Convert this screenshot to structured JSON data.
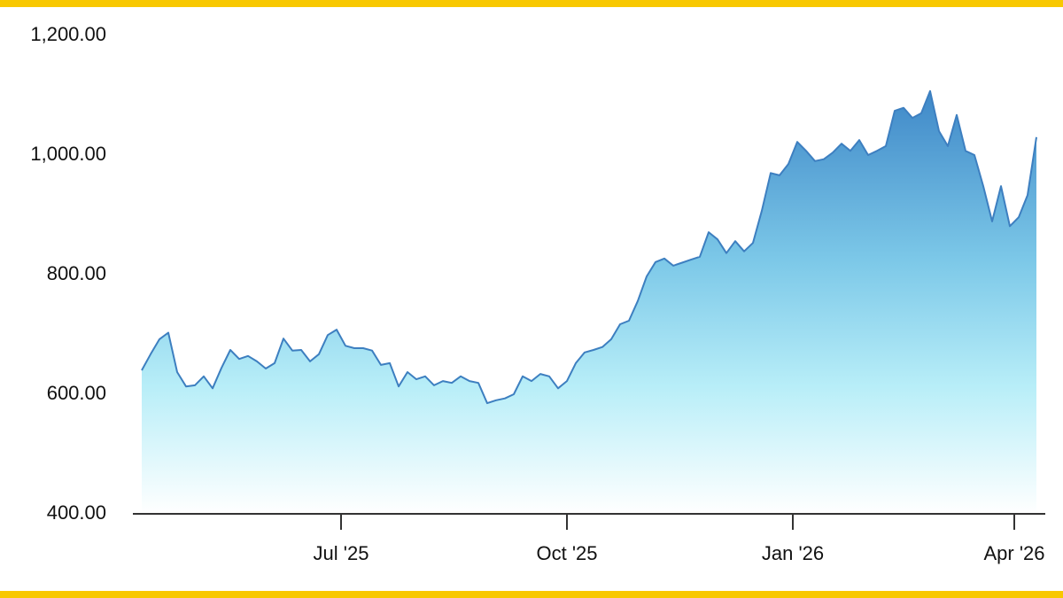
{
  "chart_data": {
    "type": "area",
    "values": [
      640,
      667,
      692,
      703,
      637,
      613,
      615,
      630,
      610,
      644,
      674,
      659,
      664,
      655,
      643,
      652,
      693,
      673,
      674,
      655,
      667,
      699,
      708,
      681,
      677,
      677,
      673,
      649,
      652,
      613,
      637,
      625,
      630,
      615,
      622,
      619,
      630,
      622,
      619,
      585,
      590,
      593,
      600,
      630,
      622,
      634,
      630,
      610,
      622,
      652,
      670,
      674,
      679,
      692,
      717,
      723,
      756,
      797,
      821,
      827,
      815,
      820,
      825,
      830,
      871,
      859,
      836,
      856,
      839,
      853,
      907,
      970,
      966,
      985,
      1022,
      1007,
      990,
      993,
      1004,
      1019,
      1007,
      1025,
      1000,
      1007,
      1015,
      1074,
      1079,
      1062,
      1070,
      1107,
      1040,
      1015,
      1067,
      1007,
      1000,
      948,
      889,
      948,
      881,
      896,
      933,
      1030
    ],
    "color": "#3d7fc0",
    "xlim": [
      0,
      101
    ],
    "xticks": [
      {
        "value": 22.5,
        "label": "Jul '25"
      },
      {
        "value": 48,
        "label": "Oct '25"
      },
      {
        "value": 73.5,
        "label": "Jan '26"
      },
      {
        "value": 98.5,
        "label": "Apr '26"
      }
    ],
    "ylim": [
      400,
      1200
    ],
    "yticks": [
      {
        "value": 400,
        "label": "400.00"
      },
      {
        "value": 600,
        "label": "600.00"
      },
      {
        "value": 800,
        "label": "800.00"
      },
      {
        "value": 1000,
        "label": "1,000.00"
      },
      {
        "value": 1200,
        "label": "1,200.00"
      }
    ]
  }
}
